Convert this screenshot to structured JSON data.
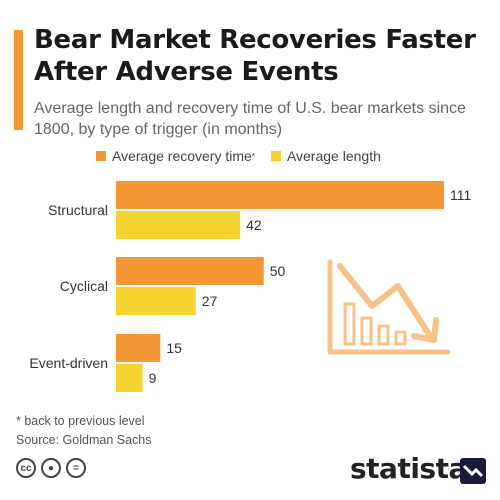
{
  "colors": {
    "accent": "#f29734",
    "recovery": "#f29734",
    "length": "#f5d42f",
    "icon": "#f7c28a"
  },
  "header": {
    "title": "Bear Market Recoveries Faster After Adverse Events",
    "subtitle": "Average length and recovery time of U.S. bear markets since 1800, by type of trigger (in months)"
  },
  "chart_data": {
    "type": "bar",
    "orientation": "horizontal",
    "categories": [
      "Structural",
      "Cyclical",
      "Event-driven"
    ],
    "series": [
      {
        "name": "Average recovery time",
        "name_suffix": "*",
        "color": "#f29734",
        "values": [
          111,
          50,
          15
        ]
      },
      {
        "name": "Average length",
        "color": "#f5d42f",
        "values": [
          42,
          27,
          9
        ]
      }
    ],
    "xlim": [
      0,
      111
    ],
    "grid": false,
    "legend": "top",
    "data_labels": true
  },
  "footer": {
    "footnote": "* back to previous level",
    "source": "Source: Goldman Sachs",
    "brand": "statista",
    "license_icons": [
      "cc-icon",
      "by-icon",
      "nd-icon"
    ]
  }
}
